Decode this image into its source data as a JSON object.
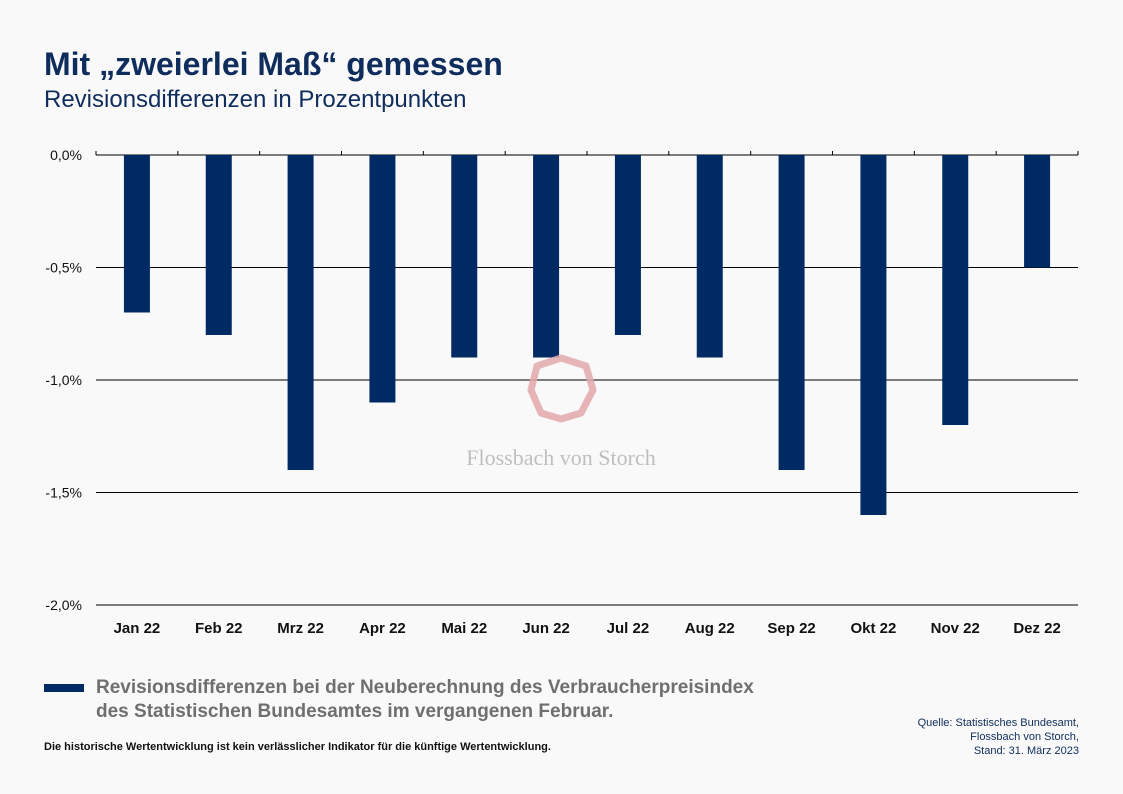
{
  "header": {
    "title": "Mit „zweierlei Maß“ gemessen",
    "subtitle": "Revisionsdifferenzen in Prozentpunkten"
  },
  "watermark": {
    "text": "Flossbach von Storch"
  },
  "legend": {
    "line1": "Revisionsdifferenzen bei der Neuberechnung des Verbraucherpreisindex",
    "line2": "des Statistischen Bundesamtes im vergangenen Februar."
  },
  "footer": {
    "disclaimer": "Die historische Wertentwicklung ist kein verlässlicher Indikator für die künftige Wertentwicklung.",
    "source_line1": "Quelle: Statistisches Bundesamt,",
    "source_line2": "Flossbach von Storch,",
    "source_line3": "Stand: 31. März 2023"
  },
  "colors": {
    "bar": "#002a63",
    "title": "#0f2d5c",
    "legend_text": "#6f6f6f",
    "grid": "#000000",
    "watermark_logo": "#e3a9ab",
    "watermark_text": "#b5b5b5"
  },
  "chart_data": {
    "type": "bar",
    "categories": [
      "Jan 22",
      "Feb 22",
      "Mrz 22",
      "Apr 22",
      "Mai 22",
      "Jun 22",
      "Jul 22",
      "Aug 22",
      "Sep 22",
      "Okt 22",
      "Nov 22",
      "Dez 22"
    ],
    "values": [
      -0.7,
      -0.8,
      -1.4,
      -1.1,
      -0.9,
      -0.9,
      -0.8,
      -0.9,
      -1.4,
      -1.6,
      -1.2,
      -0.5
    ],
    "yticks": [
      0.0,
      -0.5,
      -1.0,
      -1.5,
      -2.0
    ],
    "ytick_labels": [
      "0,0%",
      "-0,5%",
      "-1,0%",
      "-1,5%",
      "-2,0%"
    ],
    "ylim": [
      -2.0,
      0.0
    ],
    "grid": true,
    "legend_position": "bottom-left"
  }
}
